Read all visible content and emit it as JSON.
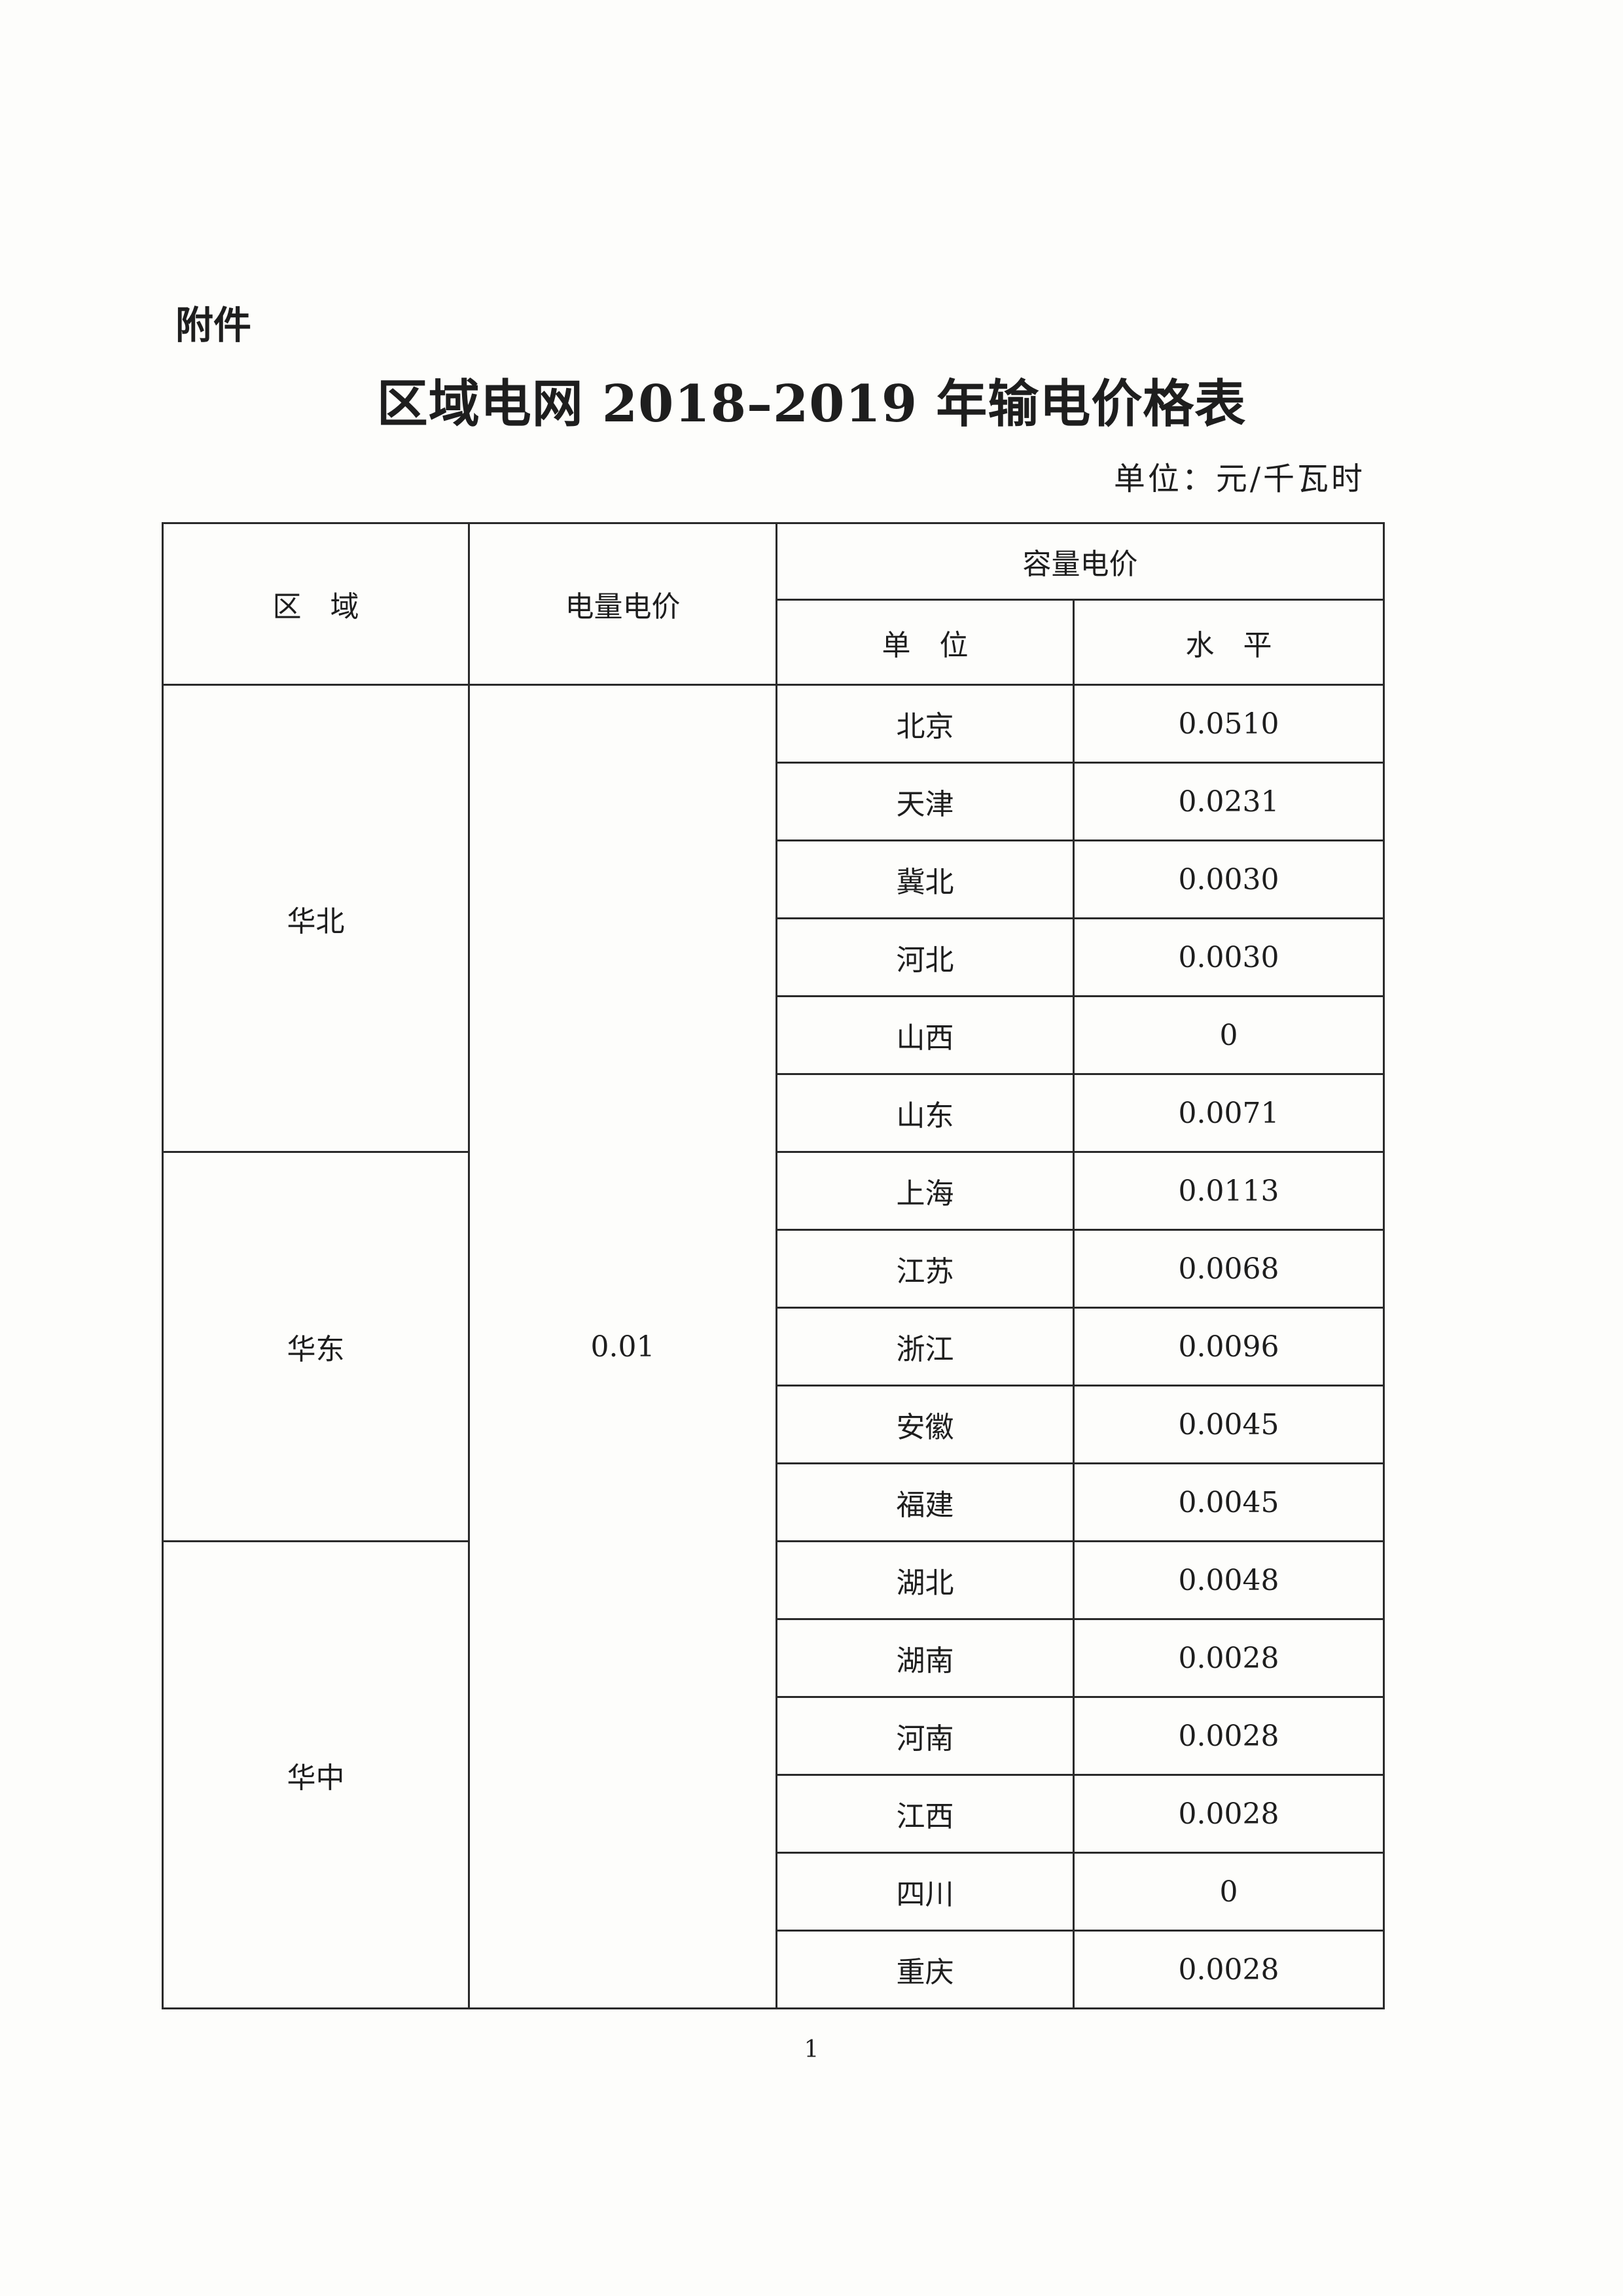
{
  "attachment_label": "附件",
  "title": "区域电网 2018–2019 年输电价格表",
  "unit": "单位：元/千瓦时",
  "table": {
    "headers": {
      "region": "区　域",
      "energy_price": "电量电价",
      "capacity_price": "容量电价",
      "unit": "单　位",
      "level": "水　平"
    },
    "energy_price_value": "0.01",
    "regions": [
      {
        "name": "华北",
        "rows": [
          {
            "unit": "北京",
            "level": "0.0510"
          },
          {
            "unit": "天津",
            "level": "0.0231"
          },
          {
            "unit": "冀北",
            "level": "0.0030"
          },
          {
            "unit": "河北",
            "level": "0.0030"
          },
          {
            "unit": "山西",
            "level": "0"
          },
          {
            "unit": "山东",
            "level": "0.0071"
          }
        ]
      },
      {
        "name": "华东",
        "rows": [
          {
            "unit": "上海",
            "level": "0.0113"
          },
          {
            "unit": "江苏",
            "level": "0.0068"
          },
          {
            "unit": "浙江",
            "level": "0.0096"
          },
          {
            "unit": "安徽",
            "level": "0.0045"
          },
          {
            "unit": "福建",
            "level": "0.0045"
          }
        ]
      },
      {
        "name": "华中",
        "rows": [
          {
            "unit": "湖北",
            "level": "0.0048"
          },
          {
            "unit": "湖南",
            "level": "0.0028"
          },
          {
            "unit": "河南",
            "level": "0.0028"
          },
          {
            "unit": "江西",
            "level": "0.0028"
          },
          {
            "unit": "四川",
            "level": "0"
          },
          {
            "unit": "重庆",
            "level": "0.0028"
          }
        ]
      }
    ]
  },
  "page_number": "1"
}
